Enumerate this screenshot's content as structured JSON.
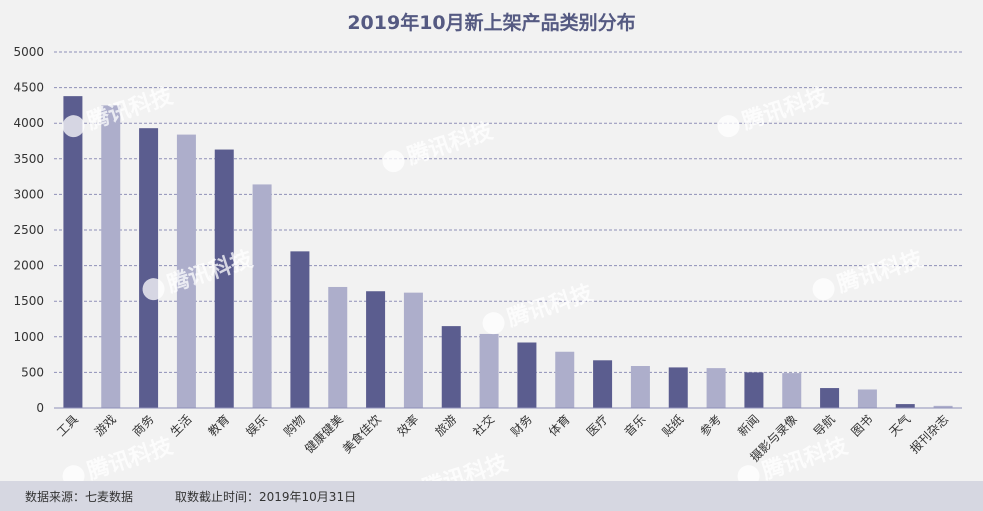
{
  "chart_data": {
    "type": "bar",
    "title": "2019年10月新上架产品类别分布",
    "categories": [
      "工具",
      "游戏",
      "商务",
      "生活",
      "教育",
      "娱乐",
      "购物",
      "健康健美",
      "美食佳饮",
      "效率",
      "旅游",
      "社交",
      "财务",
      "体育",
      "医疗",
      "音乐",
      "贴纸",
      "参考",
      "新闻",
      "摄影与录像",
      "导航",
      "图书",
      "天气",
      "报刊杂志"
    ],
    "values": [
      4380,
      4250,
      3930,
      3840,
      3630,
      3140,
      2200,
      1700,
      1640,
      1620,
      1150,
      1040,
      920,
      790,
      670,
      590,
      570,
      560,
      500,
      490,
      280,
      260,
      55,
      30
    ],
    "ylim": [
      0,
      5000
    ],
    "yticks": [
      0,
      500,
      1000,
      1500,
      2000,
      2500,
      3000,
      3500,
      4000,
      4500,
      5000
    ],
    "grid": true,
    "colors": {
      "dark": "#5b5d8f",
      "light": "#adaecb"
    }
  },
  "watermark": {
    "text": "腾讯科技"
  },
  "footer": {
    "source": "数据来源：七麦数据",
    "cutoff": "取数截止时间：2019年10月31日"
  }
}
